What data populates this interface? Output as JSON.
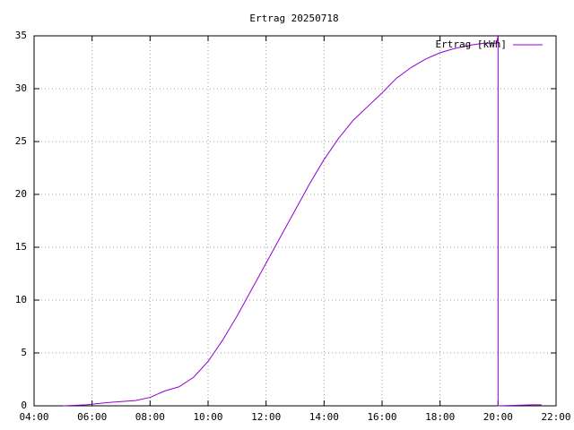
{
  "chart_data": {
    "type": "line",
    "title": "Ertrag 20250718",
    "x": [
      5.0,
      5.8,
      6.5,
      7.0,
      7.5,
      8.0,
      8.5,
      9.0,
      9.5,
      10.0,
      10.5,
      11.0,
      11.5,
      12.0,
      12.5,
      13.0,
      13.5,
      14.0,
      14.5,
      15.0,
      15.5,
      16.0,
      16.5,
      17.0,
      17.5,
      18.0,
      18.5,
      19.0,
      19.5,
      19.95,
      20.0,
      20.0,
      21.2,
      21.5
    ],
    "series": [
      {
        "name": "Ertrag [kWh]",
        "color": "#9400d3",
        "values": [
          0,
          0.1,
          0.3,
          0.4,
          0.5,
          0.8,
          1.4,
          1.8,
          2.7,
          4.2,
          6.2,
          8.5,
          11.0,
          13.5,
          16.0,
          18.5,
          21.0,
          23.3,
          25.3,
          27.0,
          28.3,
          29.6,
          31.0,
          32.0,
          32.8,
          33.4,
          33.8,
          34.1,
          34.3,
          34.3,
          35,
          0,
          0.1,
          0.1
        ]
      }
    ],
    "xlim": [
      4,
      22
    ],
    "xticks": [
      {
        "value": 4,
        "label": "04:00"
      },
      {
        "value": 6,
        "label": "06:00"
      },
      {
        "value": 8,
        "label": "08:00"
      },
      {
        "value": 10,
        "label": "10:00"
      },
      {
        "value": 12,
        "label": "12:00"
      },
      {
        "value": 14,
        "label": "14:00"
      },
      {
        "value": 16,
        "label": "16:00"
      },
      {
        "value": 18,
        "label": "18:00"
      },
      {
        "value": 20,
        "label": "20:00"
      },
      {
        "value": 22,
        "label": "22:00"
      }
    ],
    "ylim": [
      0,
      35
    ],
    "yticks": [
      0,
      5,
      10,
      15,
      20,
      25,
      30,
      35
    ],
    "grid": true,
    "legend": "top-right"
  }
}
